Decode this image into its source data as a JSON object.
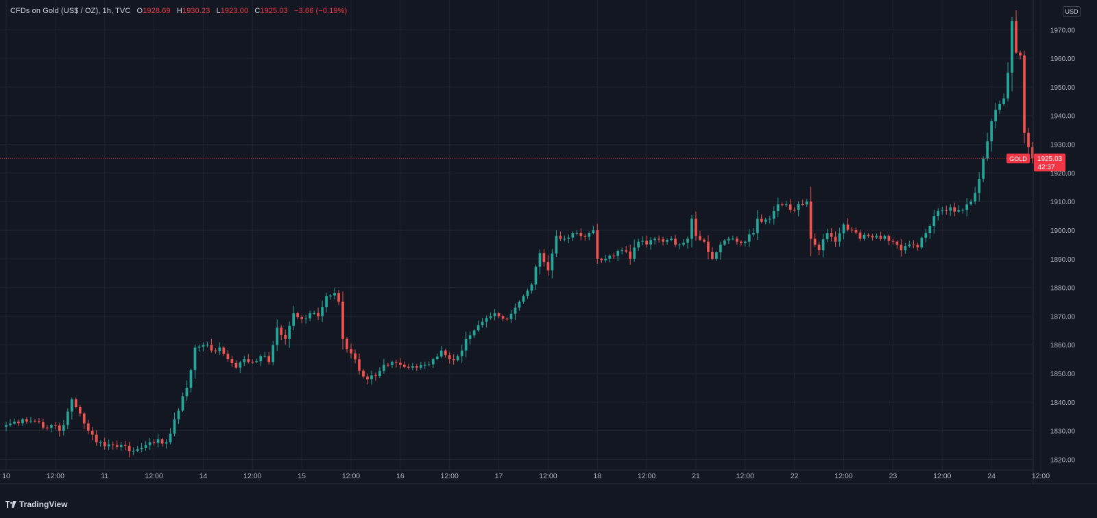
{
  "legend": {
    "symbol": "CFDs on Gold (US$ / OZ), 1h, TVC",
    "o_key": "O",
    "o": "1928.69",
    "h_key": "H",
    "h": "1930.23",
    "l_key": "L",
    "l": "1923.00",
    "c_key": "C",
    "c": "1925.03",
    "change": "−3.66 (−0.19%)"
  },
  "currency": "USD",
  "last_price": {
    "ticker": "GOLD",
    "price": "1925.03",
    "countdown": "42:37",
    "value": 1925.03
  },
  "brand": {
    "name": "TradingView",
    "icon": "tradingview-logo-icon"
  },
  "colors": {
    "background": "#131722",
    "grid": "#1f2431",
    "up": "#26a69a",
    "down": "#ef5350",
    "text": "#b2b5be",
    "price_line": "#f23645"
  },
  "chart_data": {
    "type": "candlestick",
    "interval": "1h",
    "ylim": [
      1817,
      1977
    ],
    "y_ticks": [
      1820,
      1830,
      1840,
      1850,
      1860,
      1870,
      1880,
      1890,
      1900,
      1910,
      1920,
      1930,
      1940,
      1950,
      1960,
      1970
    ],
    "y_tick_labels": [
      "1820.00",
      "1830.00",
      "1840.00",
      "1850.00",
      "1860.00",
      "1870.00",
      "1880.00",
      "1890.00",
      "1900.00",
      "1910.00",
      "1920.00",
      "1930.00",
      "1940.00",
      "1950.00",
      "1960.00",
      "1970.00"
    ],
    "x_ticks": [
      {
        "i": 0,
        "label": "10"
      },
      {
        "i": 12,
        "label": "12:00"
      },
      {
        "i": 24,
        "label": "11"
      },
      {
        "i": 36,
        "label": "12:00"
      },
      {
        "i": 48,
        "label": "14"
      },
      {
        "i": 60,
        "label": "12:00"
      },
      {
        "i": 72,
        "label": "15"
      },
      {
        "i": 84,
        "label": "12:00"
      },
      {
        "i": 96,
        "label": "16"
      },
      {
        "i": 108,
        "label": "12:00"
      },
      {
        "i": 120,
        "label": "17"
      },
      {
        "i": 132,
        "label": "12:00"
      },
      {
        "i": 144,
        "label": "18"
      },
      {
        "i": 156,
        "label": "12:00"
      },
      {
        "i": 168,
        "label": "21"
      },
      {
        "i": 180,
        "label": "12:00"
      },
      {
        "i": 192,
        "label": "22"
      },
      {
        "i": 204,
        "label": "12:00"
      },
      {
        "i": 216,
        "label": "23"
      },
      {
        "i": 228,
        "label": "12:00"
      },
      {
        "i": 240,
        "label": "24"
      },
      {
        "i": 252,
        "label": "12:00"
      }
    ],
    "anchors": [
      [
        0,
        1832
      ],
      [
        4,
        1834
      ],
      [
        8,
        1833
      ],
      [
        10,
        1831
      ],
      [
        11,
        1832
      ],
      [
        13,
        1830
      ],
      [
        14,
        1832
      ],
      [
        16,
        1841
      ],
      [
        18,
        1836
      ],
      [
        20,
        1830
      ],
      [
        22,
        1826
      ],
      [
        26,
        1825
      ],
      [
        28,
        1825
      ],
      [
        31,
        1823
      ],
      [
        33,
        1824
      ],
      [
        35,
        1826
      ],
      [
        37,
        1827
      ],
      [
        39,
        1826
      ],
      [
        40,
        1829
      ],
      [
        42,
        1837
      ],
      [
        44,
        1845
      ],
      [
        46,
        1859
      ],
      [
        48,
        1860
      ],
      [
        50,
        1858
      ],
      [
        52,
        1859
      ],
      [
        54,
        1855
      ],
      [
        56,
        1852
      ],
      [
        58,
        1855
      ],
      [
        60,
        1854
      ],
      [
        62,
        1856
      ],
      [
        64,
        1854
      ],
      [
        66,
        1866
      ],
      [
        68,
        1862
      ],
      [
        70,
        1871
      ],
      [
        72,
        1869
      ],
      [
        74,
        1871
      ],
      [
        76,
        1870
      ],
      [
        78,
        1877
      ],
      [
        80,
        1878
      ],
      [
        81,
        1875
      ],
      [
        82,
        1862
      ],
      [
        84,
        1857
      ],
      [
        86,
        1851
      ],
      [
        88,
        1848
      ],
      [
        90,
        1849
      ],
      [
        92,
        1853
      ],
      [
        94,
        1854
      ],
      [
        96,
        1853
      ],
      [
        98,
        1852
      ],
      [
        100,
        1852
      ],
      [
        102,
        1853
      ],
      [
        104,
        1855
      ],
      [
        106,
        1858
      ],
      [
        108,
        1855
      ],
      [
        110,
        1856
      ],
      [
        112,
        1862
      ],
      [
        114,
        1865
      ],
      [
        116,
        1868
      ],
      [
        118,
        1870
      ],
      [
        120,
        1870
      ],
      [
        122,
        1869
      ],
      [
        124,
        1873
      ],
      [
        126,
        1877
      ],
      [
        128,
        1881
      ],
      [
        130,
        1892
      ],
      [
        132,
        1886
      ],
      [
        134,
        1898
      ],
      [
        136,
        1897
      ],
      [
        138,
        1899
      ],
      [
        140,
        1898
      ],
      [
        142,
        1899
      ],
      [
        143,
        1900
      ],
      [
        144,
        1890
      ],
      [
        146,
        1890
      ],
      [
        148,
        1891
      ],
      [
        150,
        1893
      ],
      [
        152,
        1890
      ],
      [
        154,
        1896
      ],
      [
        156,
        1895
      ],
      [
        158,
        1897
      ],
      [
        160,
        1896
      ],
      [
        162,
        1897
      ],
      [
        164,
        1895
      ],
      [
        166,
        1897
      ],
      [
        167,
        1904
      ],
      [
        168,
        1898
      ],
      [
        170,
        1896
      ],
      [
        172,
        1890
      ],
      [
        174,
        1895
      ],
      [
        176,
        1897
      ],
      [
        178,
        1896
      ],
      [
        180,
        1896
      ],
      [
        182,
        1899
      ],
      [
        183,
        1904
      ],
      [
        186,
        1904
      ],
      [
        188,
        1909
      ],
      [
        190,
        1909
      ],
      [
        192,
        1907
      ],
      [
        194,
        1909
      ],
      [
        195,
        1910
      ],
      [
        196,
        1897
      ],
      [
        198,
        1893
      ],
      [
        200,
        1899
      ],
      [
        202,
        1896
      ],
      [
        204,
        1902
      ],
      [
        206,
        1900
      ],
      [
        208,
        1897
      ],
      [
        210,
        1898
      ],
      [
        212,
        1898
      ],
      [
        214,
        1898
      ],
      [
        216,
        1896
      ],
      [
        218,
        1893
      ],
      [
        220,
        1895
      ],
      [
        222,
        1894
      ],
      [
        224,
        1899
      ],
      [
        226,
        1905
      ],
      [
        228,
        1907
      ],
      [
        230,
        1908
      ],
      [
        232,
        1907
      ],
      [
        234,
        1909
      ],
      [
        235,
        1910
      ],
      [
        236,
        1913
      ],
      [
        238,
        1925
      ],
      [
        239,
        1931
      ],
      [
        240,
        1938
      ],
      [
        241,
        1942
      ],
      [
        242,
        1944
      ],
      [
        243,
        1946
      ],
      [
        244,
        1955
      ],
      [
        245,
        1973
      ],
      [
        246,
        1962
      ],
      [
        247,
        1961
      ],
      [
        248,
        1934
      ],
      [
        249,
        1929
      ],
      [
        250,
        1925.03
      ]
    ]
  }
}
